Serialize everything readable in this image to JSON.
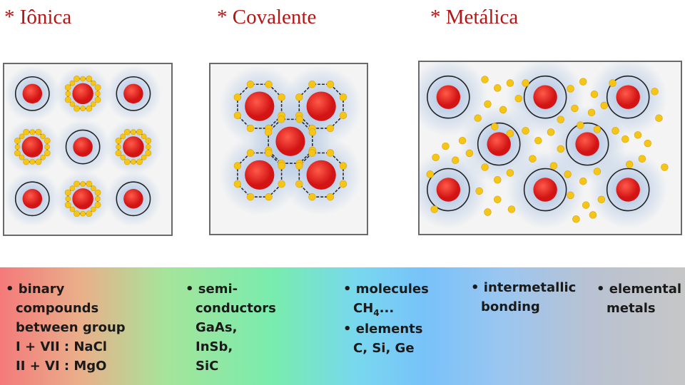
{
  "titles": {
    "ionic": "* Iônica",
    "covalent": "* Covalente",
    "metallic": "* Metálica"
  },
  "colors": {
    "ion": "#d21414",
    "electron": "#f5c518",
    "halo": "#8fb0dc",
    "bond": "#2a2a2a",
    "ring": "#222222"
  },
  "columns": {
    "c1": {
      "bullet": "• binary",
      "l2": "compounds",
      "l3": "between group",
      "l4": "I + VII : NaCl",
      "l5": "II + VI : MgO"
    },
    "c2": {
      "bullet": "• semi-",
      "l2": "conductors",
      "l3": "GaAs,",
      "l4": "InSb,",
      "l5": "SiC"
    },
    "c3": {
      "bullet": "• molecules",
      "ch": "CH",
      "ch_sub": "4",
      "ch_tail": "...",
      "bullet2": "• elements",
      "l4": "C, Si, Ge"
    },
    "c4": {
      "bullet": "• intermetallic",
      "l2": "bonding"
    },
    "c5": {
      "bullet": "• elemental",
      "l2": "metals"
    }
  }
}
